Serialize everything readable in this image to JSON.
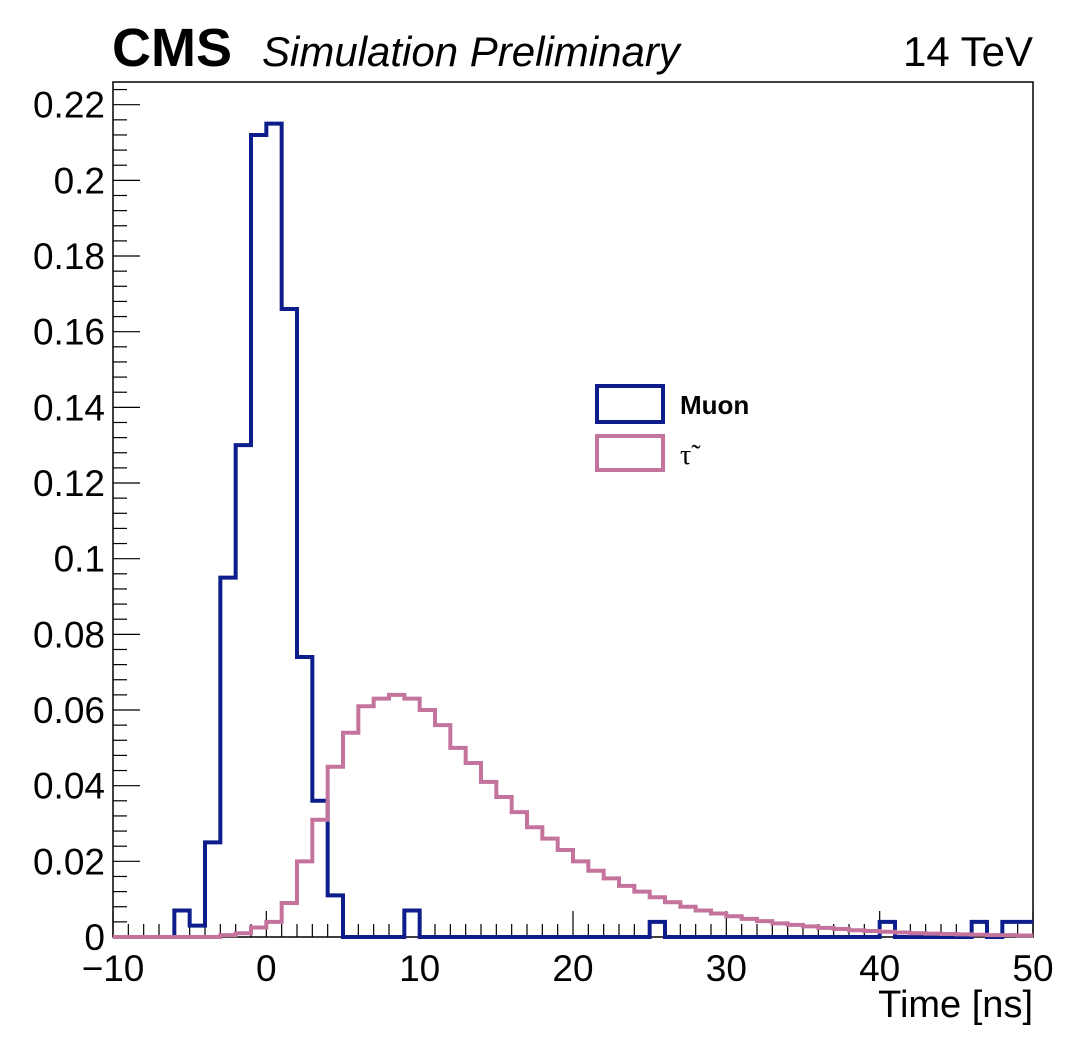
{
  "header": {
    "experiment": "CMS",
    "status": "Simulation Preliminary",
    "energy": "14 TeV"
  },
  "legend": {
    "entries": [
      {
        "label": "Muon",
        "color": "#0d1e8c"
      },
      {
        "label": "τ̃",
        "color": "#c4739c"
      }
    ]
  },
  "chart_data": {
    "type": "step",
    "xlabel": "Time [ns]",
    "ylabel": "",
    "xlim": [
      -10,
      50
    ],
    "ylim": [
      0,
      0.226
    ],
    "x_tick_labels": [
      "−10",
      "0",
      "10",
      "20",
      "30",
      "40",
      "50"
    ],
    "x_ticks": [
      -10,
      0,
      10,
      20,
      30,
      40,
      50
    ],
    "y_tick_labels": [
      "0",
      "0.02",
      "0.04",
      "0.06",
      "0.08",
      "0.1",
      "0.12",
      "0.14",
      "0.16",
      "0.18",
      "0.2",
      "0.22"
    ],
    "y_ticks": [
      0,
      0.02,
      0.04,
      0.06,
      0.08,
      0.1,
      0.12,
      0.14,
      0.16,
      0.18,
      0.2,
      0.22
    ],
    "bin_width": 1,
    "bin_start": -10,
    "series": [
      {
        "name": "Muon",
        "color": "#0d1e8c",
        "values": [
          0,
          0,
          0,
          0,
          0.007,
          0.003,
          0.025,
          0.095,
          0.13,
          0.212,
          0.215,
          0.166,
          0.074,
          0.036,
          0.011,
          0,
          0,
          0,
          0,
          0.007,
          0,
          0,
          0,
          0,
          0,
          0,
          0,
          0,
          0,
          0,
          0,
          0,
          0,
          0,
          0,
          0.004,
          0,
          0,
          0,
          0,
          0,
          0,
          0,
          0,
          0,
          0,
          0,
          0,
          0,
          0,
          0.004,
          0,
          0,
          0,
          0,
          0,
          0.004,
          0,
          0.004,
          0.004
        ]
      },
      {
        "name": "τ̃",
        "color": "#c4739c",
        "values": [
          0,
          0,
          0,
          0,
          0,
          0,
          0,
          0.0005,
          0.001,
          0.0025,
          0.004,
          0.009,
          0.02,
          0.031,
          0.045,
          0.054,
          0.061,
          0.063,
          0.064,
          0.063,
          0.06,
          0.056,
          0.05,
          0.046,
          0.041,
          0.037,
          0.033,
          0.029,
          0.026,
          0.023,
          0.02,
          0.0175,
          0.0155,
          0.0135,
          0.012,
          0.0105,
          0.0092,
          0.008,
          0.007,
          0.0062,
          0.0055,
          0.0048,
          0.0042,
          0.0036,
          0.0032,
          0.0028,
          0.0024,
          0.0021,
          0.0018,
          0.0016,
          0.0014,
          0.0012,
          0.001,
          0.0009,
          0.0008,
          0.0007,
          0.0006,
          0.0005,
          0.0005,
          0.0004
        ]
      }
    ]
  }
}
